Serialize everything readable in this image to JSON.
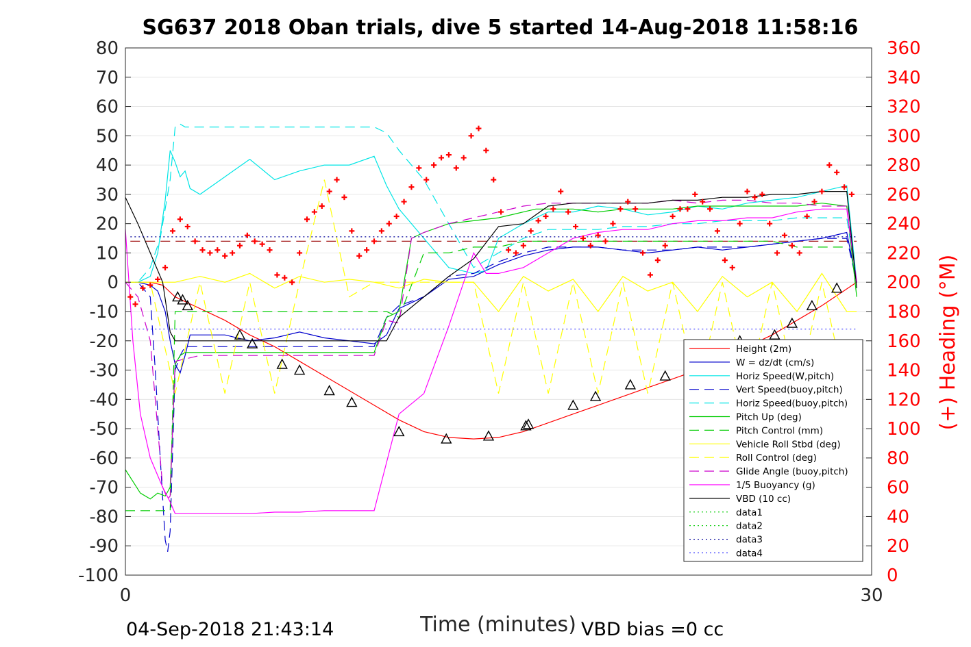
{
  "chart_data": {
    "type": "line",
    "title": "SG637 2018 Oban trials, dive 5 started 14-Aug-2018 11:58:16",
    "xlabel": "Time (minutes)",
    "ylabel_right": "(+) Heading (°M)",
    "xlim": [
      0,
      30
    ],
    "ylim": [
      -100,
      80
    ],
    "y2lim": [
      0,
      360
    ],
    "x_ticks": [
      "0",
      "30"
    ],
    "y_ticks": [
      "80",
      "70",
      "60",
      "50",
      "40",
      "30",
      "20",
      "10",
      "0",
      "-10",
      "-20",
      "-30",
      "-40",
      "-50",
      "-60",
      "-70",
      "-80",
      "-90",
      "-100"
    ],
    "y2_ticks": [
      "360",
      "340",
      "320",
      "300",
      "280",
      "260",
      "240",
      "220",
      "200",
      "180",
      "160",
      "140",
      "120",
      "100",
      "80",
      "60",
      "40",
      "20",
      "0"
    ],
    "grid": "horizontal",
    "legend_position": "bottom-right",
    "footer_left": "04-Sep-2018 21:43:14",
    "footer_right": "VBD bias =0 cc",
    "colors": {
      "height": "#ff0000",
      "w": "#0000cc",
      "horiz": "#00e5e5",
      "pitch": "#00cc00",
      "roll": "#ffff00",
      "glide": "#cc00cc",
      "buoy": "#ff00ff",
      "vbd": "#000000",
      "heading": "#ff0000",
      "data3": "#000099",
      "data4": "#3333ff",
      "dashed_red": "#990000"
    },
    "series": [
      {
        "name": "Height (2m)",
        "color": "#ff0000",
        "style": "solid",
        "x": [
          0,
          1,
          1.5,
          2,
          2.5,
          3,
          4,
          5,
          6,
          7,
          8,
          9,
          10,
          11,
          12,
          13,
          14,
          15,
          16,
          17,
          18,
          19,
          20,
          21,
          22,
          23,
          24,
          25,
          26,
          27,
          28,
          29.4
        ],
        "y": [
          0,
          0,
          -1,
          -5,
          -7,
          -9,
          -13,
          -18,
          -22,
          -27,
          -32,
          -37,
          -42,
          -47,
          -51,
          -53,
          -53.5,
          -53,
          -51,
          -48,
          -45,
          -42,
          -39,
          -36,
          -33,
          -30,
          -26,
          -22,
          -18,
          -13,
          -8,
          0
        ]
      },
      {
        "name": "W = dz/dt (cm/s)",
        "color": "#0000cc",
        "style": "solid",
        "x": [
          0,
          0.5,
          1,
          1.3,
          1.6,
          1.8,
          2,
          2.2,
          2.4,
          2.6,
          3,
          4,
          5,
          6,
          7,
          8,
          9,
          10,
          10.5,
          11,
          12,
          13,
          14,
          14.5,
          15,
          16,
          16.5,
          17,
          18,
          19,
          20,
          21,
          22,
          23,
          24,
          25,
          26,
          27,
          28,
          29,
          29.4
        ],
        "y": [
          0,
          0,
          -1,
          -3,
          -10,
          -20,
          -28,
          -31,
          -25,
          -18,
          -18,
          -18,
          -20,
          -19,
          -17,
          -19,
          -20,
          -21,
          -18,
          -9,
          -5,
          1,
          2,
          4,
          6,
          9,
          10,
          11,
          12,
          12,
          11,
          10,
          11,
          12,
          11,
          12,
          13,
          14,
          15,
          17,
          0
        ]
      },
      {
        "name": "Horiz Speed(W,pitch)",
        "color": "#00e5e5",
        "style": "solid",
        "x": [
          0,
          0.5,
          1,
          1.3,
          1.6,
          1.8,
          2,
          2.2,
          2.4,
          2.6,
          3,
          4,
          5,
          6,
          7,
          8,
          9,
          10,
          10.5,
          11,
          12,
          13,
          14,
          14.5,
          15,
          16,
          16.5,
          17,
          18,
          19,
          20,
          21,
          22,
          23,
          24,
          25,
          26,
          27,
          28,
          29,
          29.4
        ],
        "y": [
          0,
          0,
          2,
          10,
          28,
          45,
          41,
          36,
          38,
          32,
          30,
          36,
          42,
          35,
          38,
          40,
          40,
          43,
          33,
          25,
          15,
          5,
          3,
          4,
          15,
          20,
          22,
          24,
          24,
          26,
          25,
          23,
          24,
          26,
          25,
          27,
          28,
          29,
          31,
          33,
          0
        ]
      },
      {
        "name": "Vert Speed(buoy,pitch)",
        "color": "#0000cc",
        "style": "dashed",
        "x": [
          0,
          0.5,
          1,
          1.2,
          1.4,
          1.6,
          1.7,
          1.8,
          2,
          2.2,
          2.4,
          2.6,
          3,
          4,
          5,
          6,
          7,
          8,
          9,
          10,
          10.5,
          11,
          12,
          13,
          14,
          15,
          16,
          17,
          18,
          19,
          20,
          21,
          22,
          23,
          24,
          25,
          26,
          27,
          28,
          29,
          29.4
        ],
        "y": [
          0,
          0,
          -5,
          -30,
          -60,
          -88,
          -92,
          -85,
          -30,
          -25,
          -22,
          -22,
          -22,
          -22,
          -22,
          -22,
          -22,
          -22,
          -22,
          -22,
          -12,
          -8,
          -5,
          2,
          3,
          7,
          10,
          12,
          12,
          12,
          11,
          11,
          11,
          12,
          12,
          12,
          13,
          14,
          15,
          15,
          0
        ]
      },
      {
        "name": "Horiz Speed(buoy,pitch)",
        "color": "#00e5e5",
        "style": "dashed",
        "x": [
          0,
          0.5,
          1,
          1.4,
          1.8,
          2,
          2.2,
          2.4,
          3,
          4,
          5,
          6,
          7,
          8,
          9,
          10,
          10.5,
          11,
          12,
          13,
          14,
          15,
          16,
          17,
          18,
          19,
          20,
          21,
          22,
          23,
          24,
          25,
          26,
          27,
          28,
          29,
          29.4
        ],
        "y": [
          0,
          0,
          5,
          15,
          35,
          53,
          54,
          53,
          53,
          53,
          53,
          53,
          53,
          53,
          53,
          53,
          51,
          45,
          35,
          20,
          5,
          10,
          15,
          18,
          18,
          18,
          19,
          19,
          20,
          20,
          21,
          21,
          21,
          22,
          22,
          22,
          0
        ]
      },
      {
        "name": "Pitch Up (deg)",
        "color": "#00cc00",
        "style": "solid",
        "x": [
          0,
          0.3,
          0.6,
          1,
          1.3,
          1.6,
          1.8,
          2,
          2.2,
          2.4,
          2.6,
          3,
          4,
          5,
          6,
          7,
          8,
          9,
          10,
          10.5,
          11,
          11.5,
          12,
          13,
          14,
          15,
          16,
          16.5,
          17,
          18,
          19,
          20,
          21,
          22,
          23,
          24,
          25,
          26,
          27,
          28,
          29,
          29.4
        ],
        "y": [
          -64,
          -68,
          -72,
          -74,
          -72,
          -73,
          -70,
          -28,
          -25,
          -24,
          -24,
          -24,
          -24,
          -24,
          -24,
          -24,
          -24,
          -24,
          -24,
          -12,
          -10,
          15,
          17,
          20,
          21,
          22,
          24,
          25,
          25,
          25,
          24,
          25,
          25,
          25,
          26,
          26,
          26,
          26,
          26,
          27,
          26,
          -5
        ]
      },
      {
        "name": "Pitch Control (mm)",
        "color": "#00cc00",
        "style": "dashed",
        "x": [
          0,
          1.2,
          1.8,
          2,
          2.5,
          3,
          6,
          10,
          10.5,
          11,
          12,
          13,
          14,
          15,
          16,
          17,
          18,
          19,
          20,
          21,
          22,
          23,
          24,
          25,
          26,
          27,
          28,
          29
        ],
        "y": [
          -78,
          -78,
          -78,
          -10,
          -10,
          -10,
          -10,
          -10,
          -10,
          -12,
          10,
          10,
          12,
          12,
          14,
          14,
          14,
          14,
          14,
          14,
          14,
          14,
          14,
          14,
          14,
          12,
          12,
          12
        ]
      },
      {
        "name": "Vehicle Roll Stbd (deg)",
        "color": "#ffff00",
        "style": "solid",
        "x": [
          0,
          1,
          2,
          3,
          4,
          5,
          6,
          7,
          8,
          9,
          10,
          11,
          12,
          13,
          14,
          15,
          16,
          17,
          18,
          19,
          20,
          21,
          22,
          23,
          24,
          25,
          26,
          27,
          28,
          29,
          29.4
        ],
        "y": [
          0,
          0,
          0,
          2,
          0,
          3,
          -2,
          2,
          0,
          1,
          0,
          -2,
          1,
          0,
          0,
          -10,
          2,
          -3,
          1,
          -10,
          2,
          -3,
          0,
          -10,
          2,
          -5,
          0,
          -10,
          3,
          -10,
          -10
        ]
      },
      {
        "name": "Roll Control (deg)",
        "color": "#ffff00",
        "style": "dashed",
        "x": [
          0,
          1,
          2,
          3,
          4,
          5,
          6,
          7,
          8,
          9,
          10,
          11,
          12,
          13,
          14,
          15,
          16,
          17,
          18,
          19,
          20,
          21,
          22,
          23,
          24,
          25,
          26,
          27,
          28,
          29,
          29.4
        ],
        "y": [
          0,
          0,
          -38,
          0,
          -38,
          0,
          -38,
          0,
          35,
          -5,
          0,
          0,
          0,
          0,
          0,
          -38,
          0,
          -38,
          0,
          -38,
          0,
          -38,
          0,
          -38,
          0,
          -38,
          0,
          -38,
          0,
          -38,
          -38
        ]
      },
      {
        "name": "Glide Angle (buoy,pitch)",
        "color": "#cc00cc",
        "style": "dashed",
        "x": [
          0,
          0.5,
          1,
          1.5,
          1.7,
          1.8,
          2,
          3,
          4,
          5,
          6,
          7,
          8,
          9,
          10,
          10.5,
          11,
          11.5,
          12,
          13,
          14,
          15,
          16,
          17,
          18,
          19,
          20,
          21,
          22,
          23,
          24,
          25,
          26,
          27,
          28,
          29,
          29.4
        ],
        "y": [
          0,
          -5,
          -20,
          -70,
          -74,
          -73,
          -27,
          -25,
          -25,
          -25,
          -25,
          -25,
          -25,
          -25,
          -25,
          -13,
          -14,
          15,
          17,
          20,
          22,
          24,
          26,
          27,
          27,
          27,
          27,
          27,
          28,
          27,
          28,
          28,
          27,
          27,
          26,
          26,
          0
        ]
      },
      {
        "name": "1/5 Buoyancy (g)",
        "color": "#ff00ff",
        "style": "solid",
        "x": [
          0,
          0.3,
          0.6,
          1,
          1.5,
          1.8,
          2,
          3,
          4,
          5,
          6,
          7,
          8,
          9,
          10,
          11,
          12,
          13,
          14,
          14.5,
          15,
          16,
          17,
          18,
          19,
          20,
          21,
          22,
          23,
          24,
          25,
          26,
          27,
          28,
          29,
          29.4
        ],
        "y": [
          18,
          -20,
          -45,
          -60,
          -70,
          -75,
          -79,
          -79,
          -79,
          -79,
          -78.5,
          -78.5,
          -78,
          -78,
          -78,
          -45,
          -38,
          -15,
          10,
          3,
          3,
          5,
          10,
          15,
          17,
          18,
          18,
          20,
          21,
          21,
          22,
          22,
          24,
          25,
          25,
          0
        ]
      },
      {
        "name": "VBD (10 cc)",
        "color": "#000000",
        "style": "solid",
        "x": [
          0,
          0.5,
          1,
          1.5,
          1.8,
          2,
          3,
          4,
          5,
          6,
          7,
          8,
          9,
          10,
          10.5,
          11,
          12,
          13,
          14,
          15,
          16,
          16.5,
          17,
          18,
          19,
          20,
          21,
          22,
          23,
          24,
          25,
          26,
          27,
          28,
          29,
          29.4
        ],
        "y": [
          29,
          20,
          10,
          0,
          -17,
          -20,
          -20,
          -20,
          -20,
          -20,
          -20,
          -20,
          -20,
          -20,
          -20,
          -12,
          -5,
          2,
          8,
          19,
          20,
          23,
          26,
          27,
          27,
          27,
          27,
          28,
          28,
          29,
          29,
          30,
          30,
          31,
          31,
          -2
        ]
      },
      {
        "name": "data1",
        "color": "#00cc00",
        "style": "dotted",
        "x": [],
        "y": []
      },
      {
        "name": "data2",
        "color": "#00cc00",
        "style": "dotted",
        "x": [],
        "y": []
      },
      {
        "name": "data3",
        "color": "#000099",
        "style": "dotted",
        "x": [
          0.2,
          29.4
        ],
        "y": [
          15.5,
          15.5
        ]
      },
      {
        "name": "data4",
        "color": "#3333ff",
        "style": "dotted",
        "x": [
          0.2,
          29.4
        ],
        "y": [
          -16,
          -16
        ]
      }
    ],
    "reference_lines": [
      {
        "color": "#990000",
        "style": "dashed",
        "y": 14,
        "x": [
          0.2,
          29.4
        ]
      }
    ],
    "heading": {
      "color": "#ff0000",
      "axis": "right",
      "x": [
        0.2,
        0.4,
        0.7,
        1,
        1.3,
        1.6,
        1.9,
        2.2,
        2.5,
        2.8,
        3.1,
        3.4,
        3.7,
        4,
        4.3,
        4.6,
        4.9,
        5.2,
        5.5,
        5.8,
        6.1,
        6.4,
        6.7,
        7,
        7.3,
        7.6,
        7.9,
        8.2,
        8.5,
        8.8,
        9.1,
        9.4,
        9.7,
        10,
        10.3,
        10.6,
        10.9,
        11.2,
        11.5,
        11.8,
        12.1,
        12.4,
        12.7,
        13,
        13.3,
        13.6,
        13.9,
        14.2,
        14.5,
        14.8,
        15.1,
        15.4,
        15.7,
        16,
        16.3,
        16.6,
        16.9,
        17.2,
        17.5,
        17.8,
        18.1,
        18.4,
        18.7,
        19,
        19.3,
        19.6,
        19.9,
        20.2,
        20.5,
        20.8,
        21.1,
        21.4,
        21.7,
        22,
        22.3,
        22.6,
        22.9,
        23.2,
        23.5,
        23.8,
        24.1,
        24.4,
        24.7,
        25,
        25.3,
        25.6,
        25.9,
        26.2,
        26.5,
        26.8,
        27.1,
        27.4,
        27.7,
        28,
        28.3,
        28.6,
        28.9,
        29.2
      ],
      "y": [
        190,
        185,
        196,
        198,
        202,
        210,
        235,
        243,
        238,
        228,
        222,
        220,
        222,
        218,
        220,
        225,
        232,
        228,
        226,
        222,
        205,
        203,
        200,
        220,
        243,
        248,
        252,
        262,
        270,
        258,
        235,
        218,
        222,
        228,
        235,
        240,
        245,
        255,
        265,
        278,
        270,
        280,
        285,
        287,
        278,
        285,
        300,
        305,
        290,
        270,
        248,
        222,
        220,
        225,
        235,
        242,
        245,
        250,
        262,
        248,
        238,
        230,
        225,
        232,
        228,
        240,
        250,
        255,
        250,
        220,
        205,
        215,
        225,
        245,
        250,
        250,
        260,
        255,
        250,
        235,
        215,
        210,
        240,
        262,
        258,
        260,
        240,
        220,
        232,
        225,
        220,
        245,
        255,
        262,
        280,
        275,
        265,
        260
      ]
    },
    "markers": {
      "style": "triangle",
      "x": [
        2.1,
        2.3,
        2.5,
        4.6,
        5.1,
        6.3,
        7,
        8.2,
        9.1,
        11,
        12.9,
        14.6,
        16.1,
        16.2,
        18,
        18.9,
        20.3,
        21.7,
        22.8,
        24.7,
        26.1,
        26.8,
        27.6,
        28.6
      ],
      "y": [
        -5,
        -6,
        -8,
        -18,
        -21,
        -28,
        -30,
        -37,
        -41,
        -51,
        -53.5,
        -52.5,
        -49,
        -48.5,
        -42,
        -39,
        -35,
        -32,
        -27,
        -20,
        -18,
        -14,
        -8,
        -2
      ]
    }
  }
}
